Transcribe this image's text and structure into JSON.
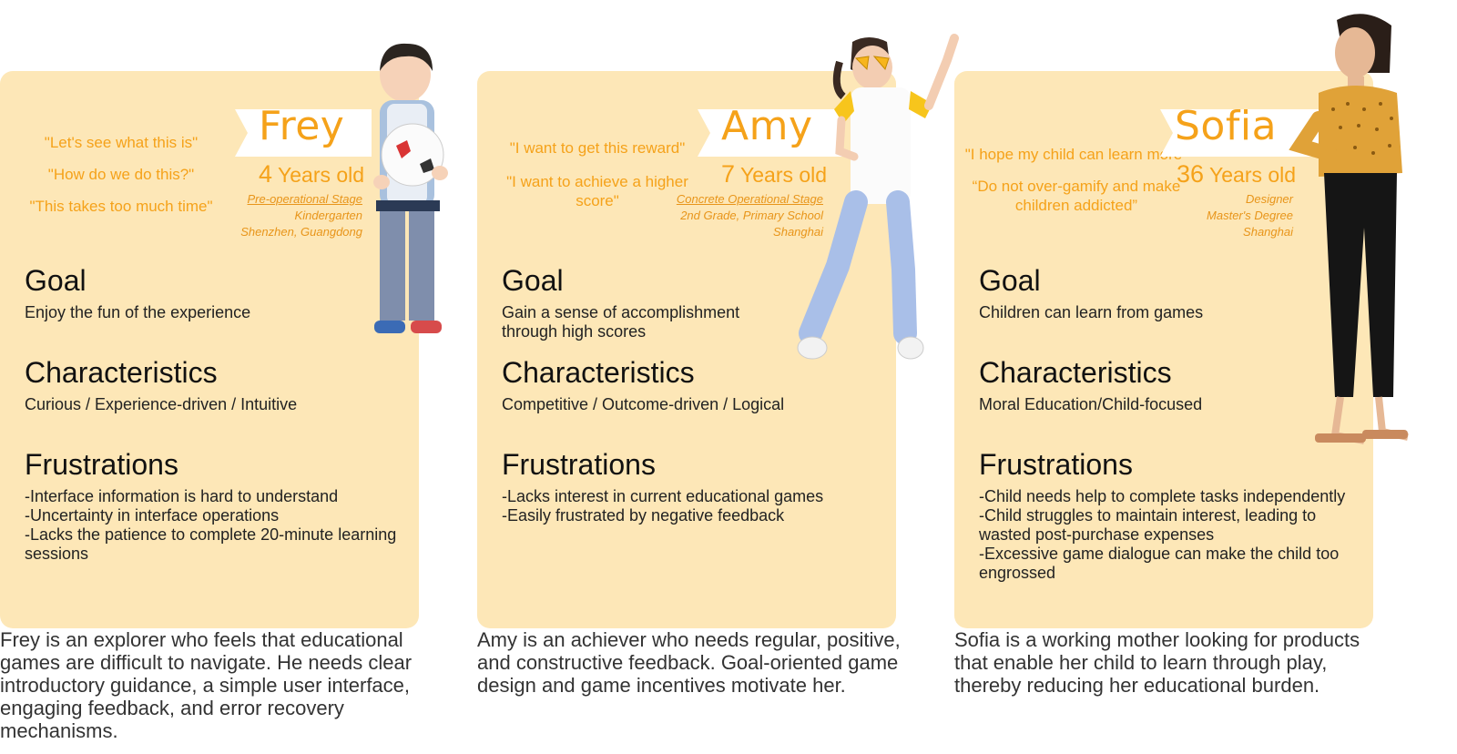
{
  "personas": [
    {
      "name": "Frey",
      "age_number": "4",
      "age_unit": "Years old",
      "stage": "Pre-operational Stage",
      "info_lines": [
        "Kindergarten",
        "Shenzhen, Guangdong"
      ],
      "quotes": [
        "\"Let's see what this is\"",
        "\"How do we do this?\"",
        "\"This takes too much time\""
      ],
      "goal_title": "Goal",
      "goal": "Enjoy the fun of the experience",
      "characteristics_title": "Characteristics",
      "characteristics": "Curious / Experience-driven / Intuitive",
      "frustrations_title": "Frustrations",
      "frustrations": [
        "-Interface information is hard to understand",
        "-Uncertainty in interface operations",
        "-Lacks the patience to complete 20-minute learning sessions"
      ],
      "summary": "Frey is an explorer who feels that educational games are difficult to navigate. He needs clear introductory guidance, a simple user interface, engaging feedback, and error recovery mechanisms."
    },
    {
      "name": "Amy",
      "age_number": "7",
      "age_unit": "Years old",
      "stage": "Concrete Operational Stage",
      "info_lines": [
        "2nd Grade, Primary School",
        "Shanghai"
      ],
      "quotes": [
        "\"I want to get this reward\"",
        "\"I want to achieve a higher score\""
      ],
      "goal_title": "Goal",
      "goal": "Gain a sense of accomplishment through high scores",
      "characteristics_title": "Characteristics",
      "characteristics": "Competitive / Outcome-driven / Logical",
      "frustrations_title": "Frustrations",
      "frustrations": [
        "-Lacks interest in current educational games",
        "-Easily frustrated by negative feedback"
      ],
      "summary": "Amy is an achiever who needs regular, positive, and constructive feedback. Goal-oriented game design and game incentives motivate her."
    },
    {
      "name": "Sofia",
      "age_number": "36",
      "age_unit": "Years old",
      "stage": "",
      "info_lines": [
        "Designer",
        "Master's Degree",
        "Shanghai"
      ],
      "quotes": [
        "\"I hope my child can learn more\"",
        "“Do not over-gamify and make children addicted”"
      ],
      "goal_title": "Goal",
      "goal": "Children can learn from games",
      "characteristics_title": "Characteristics",
      "characteristics": "Moral Education/Child-focused",
      "frustrations_title": "Frustrations",
      "frustrations": [
        "-Child needs help to complete tasks independently",
        "-Child struggles to maintain interest, leading to wasted post-purchase expenses",
        "-Excessive game dialogue can make the child too engrossed"
      ],
      "summary": "Sofia is a working mother looking for products that enable her child to learn through play, thereby reducing her educational burden."
    }
  ],
  "colors": {
    "card": "#fde7b7",
    "accent": "#f5a21a"
  },
  "icons": [
    "boy-with-ball-photo",
    "girl-with-sunglasses-photo",
    "woman-standing-photo"
  ]
}
